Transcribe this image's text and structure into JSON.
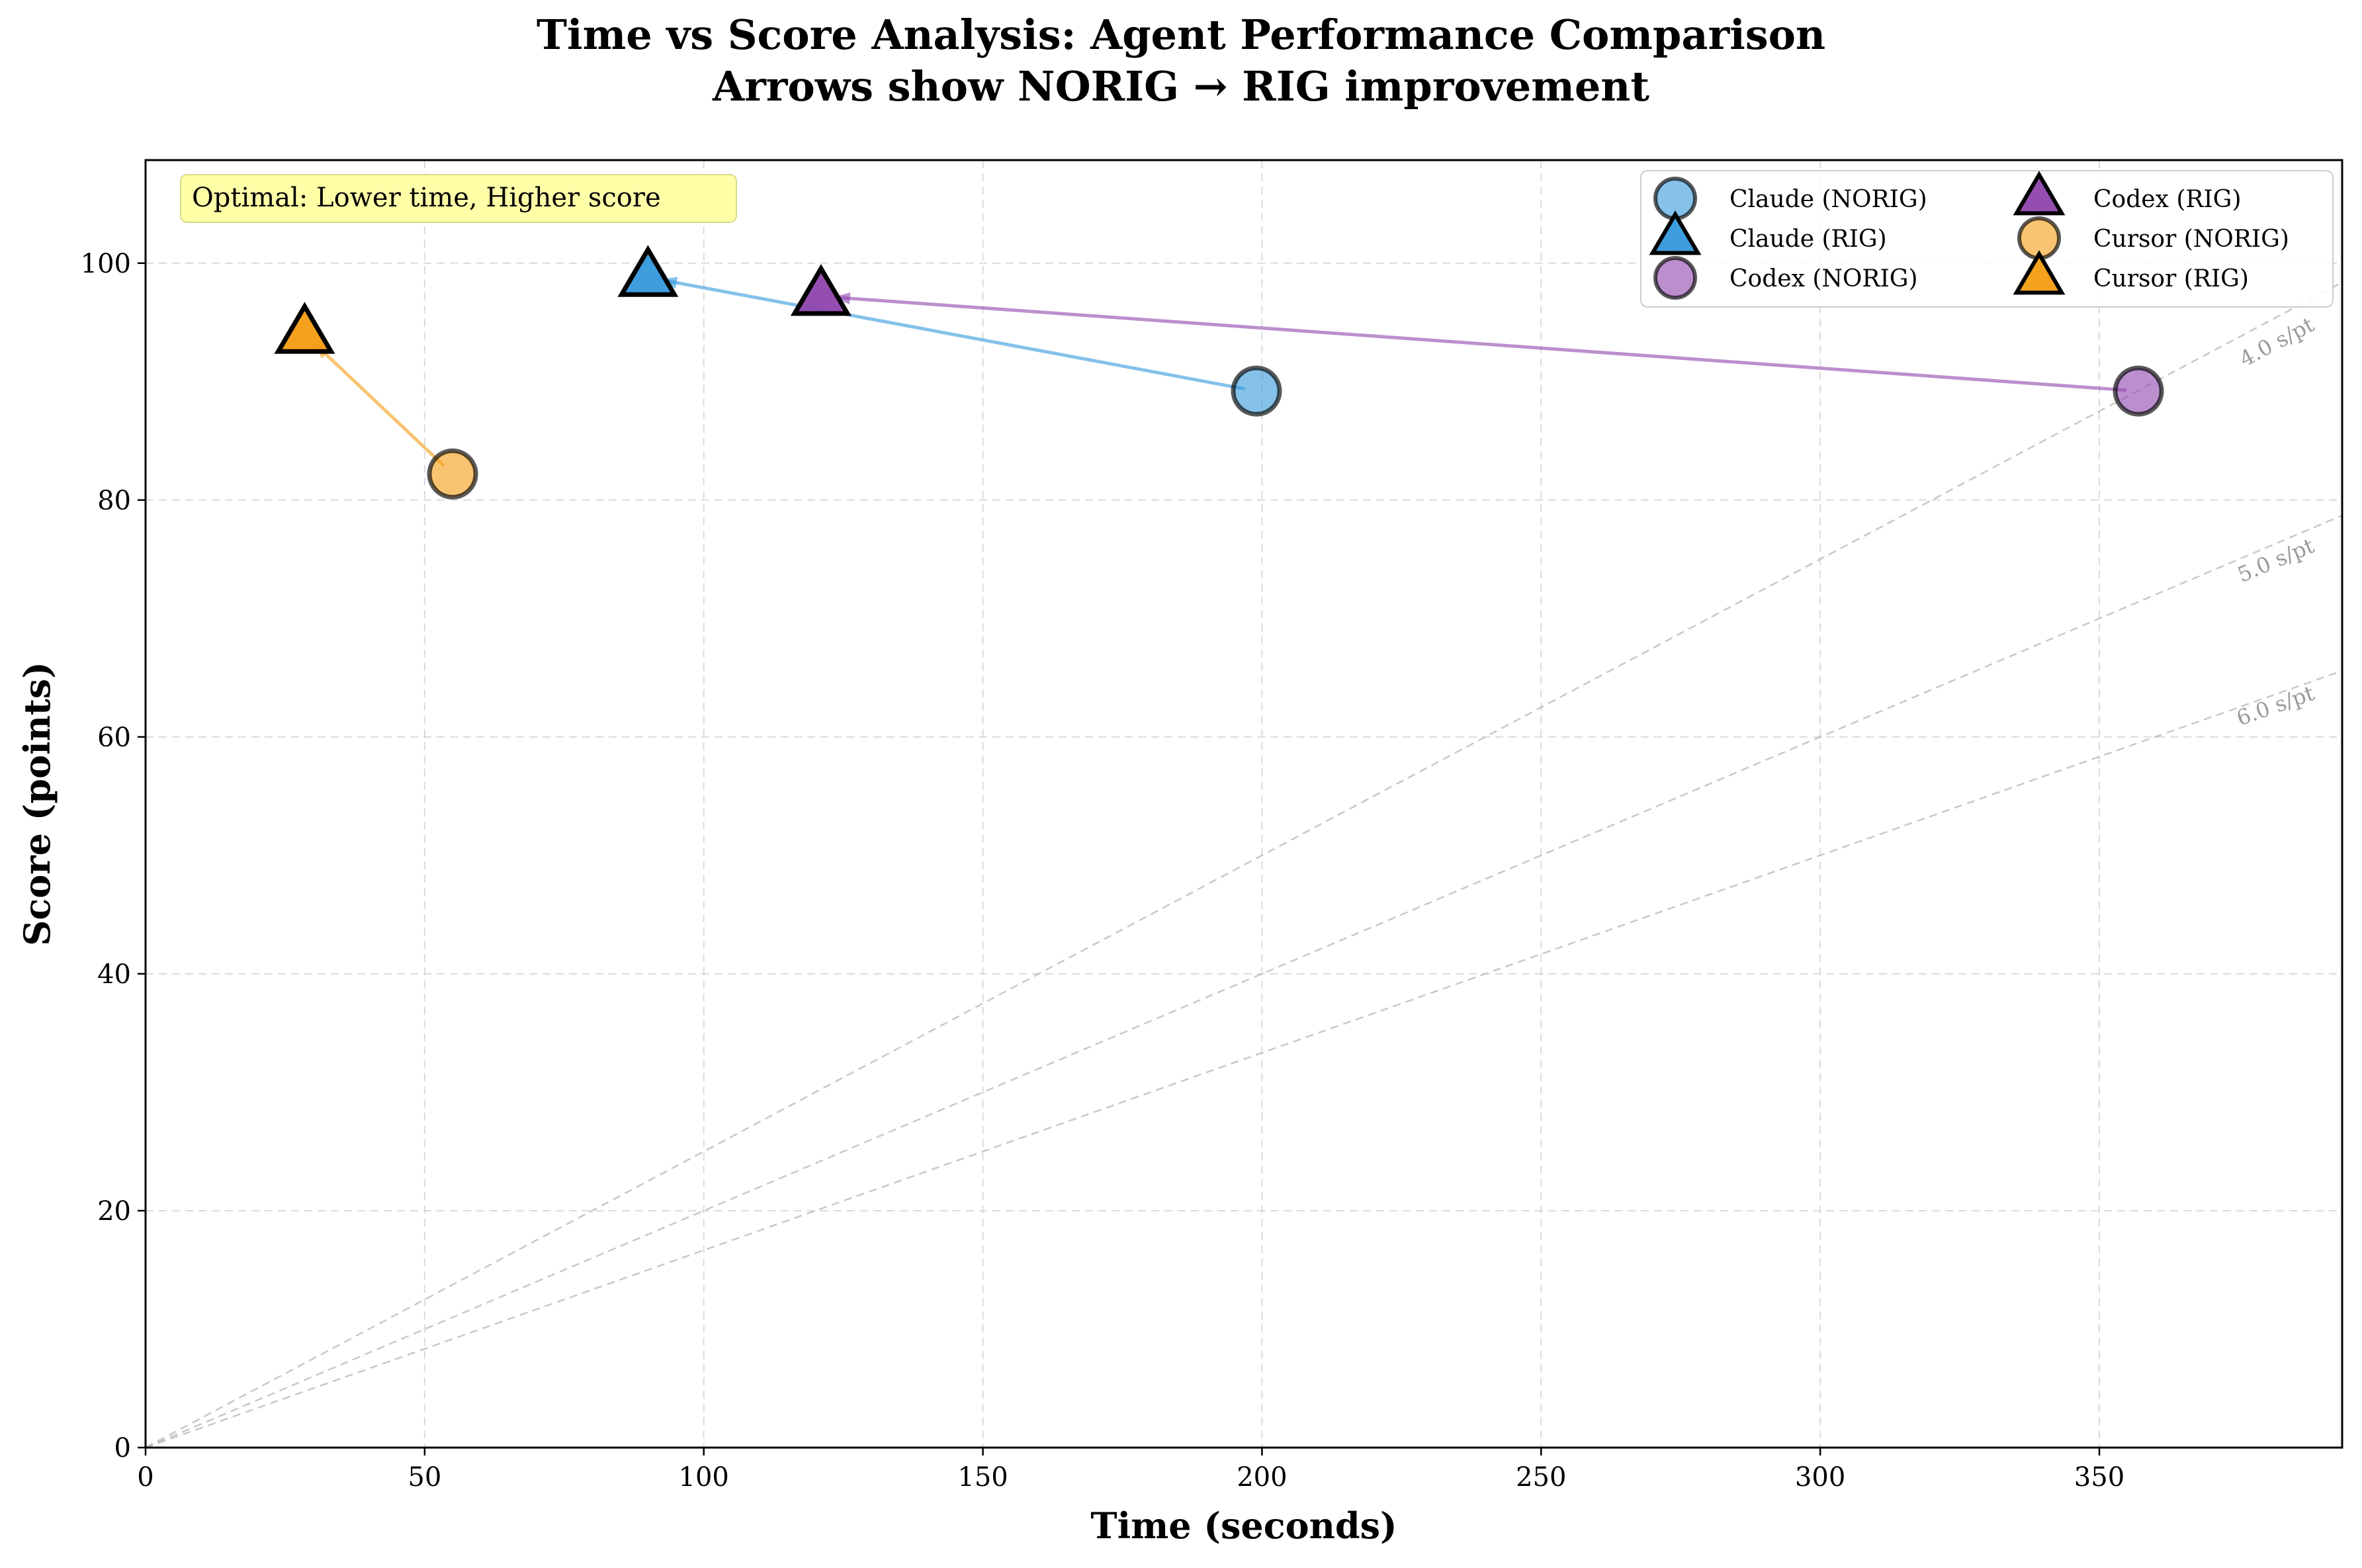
{
  "chart_data": {
    "type": "scatter",
    "title_line1": "Time vs Score Analysis: Agent Performance Comparison",
    "title_line2": "Arrows show NORIG → RIG improvement",
    "xlabel": "Time (seconds)",
    "ylabel": "Score (points)",
    "xlim": [
      0,
      393.5
    ],
    "ylim": [
      0,
      108.7
    ],
    "xticks": [
      0,
      50,
      100,
      150,
      200,
      250,
      300,
      350
    ],
    "yticks": [
      0,
      20,
      40,
      60,
      80,
      100
    ],
    "grid": true,
    "annotation": "Optimal: Lower time, Higher score",
    "reference_lines": [
      {
        "slope_s_per_pt": 4.0,
        "label": "4.0 s/pt"
      },
      {
        "slope_s_per_pt": 5.0,
        "label": "5.0 s/pt"
      },
      {
        "slope_s_per_pt": 6.0,
        "label": "6.0 s/pt"
      }
    ],
    "agents": [
      {
        "name": "Claude",
        "color": "#3498db",
        "norig": {
          "time": 199,
          "score": 89.2
        },
        "rig": {
          "time": 90,
          "score": 98.8
        }
      },
      {
        "name": "Codex",
        "color": "#8e44ad",
        "norig": {
          "time": 357,
          "score": 89.2
        },
        "rig": {
          "time": 121,
          "score": 97.2
        }
      },
      {
        "name": "Cursor",
        "color": "#f39c12",
        "norig": {
          "time": 55,
          "score": 82.2
        },
        "rig": {
          "time": 28.5,
          "score": 94.0
        }
      }
    ],
    "legend": [
      {
        "label": "Claude (NORIG)",
        "agent": "Claude",
        "marker": "circle"
      },
      {
        "label": "Claude (RIG)",
        "agent": "Claude",
        "marker": "triangle"
      },
      {
        "label": "Codex (NORIG)",
        "agent": "Codex",
        "marker": "circle"
      },
      {
        "label": "Codex (RIG)",
        "agent": "Codex",
        "marker": "triangle"
      },
      {
        "label": "Cursor (NORIG)",
        "agent": "Cursor",
        "marker": "circle"
      },
      {
        "label": "Cursor (RIG)",
        "agent": "Cursor",
        "marker": "triangle"
      }
    ],
    "legend_position": "upper-right"
  }
}
